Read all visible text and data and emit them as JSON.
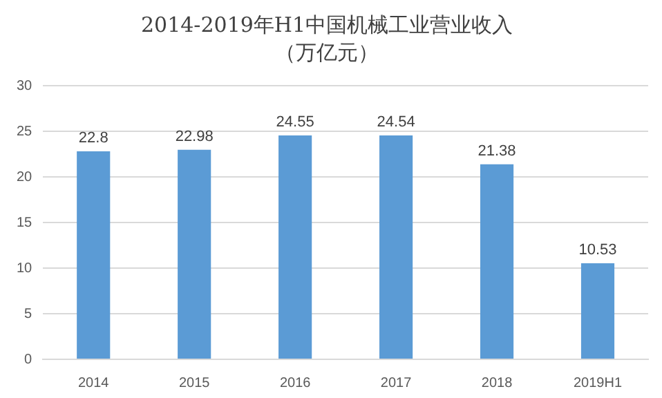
{
  "chart_data": {
    "type": "bar",
    "title": "2014-2019年H1中国机械工业营业收入",
    "subtitle": "（万亿元）",
    "categories": [
      "2014",
      "2015",
      "2016",
      "2017",
      "2018",
      "2019H1"
    ],
    "values": [
      22.8,
      22.98,
      24.55,
      24.54,
      21.38,
      10.53
    ],
    "color": "#5b9bd5",
    "ylim": [
      0,
      30
    ],
    "yticks": [
      0,
      5,
      10,
      15,
      20,
      25,
      30
    ],
    "grid": "y",
    "data_labels": true
  }
}
